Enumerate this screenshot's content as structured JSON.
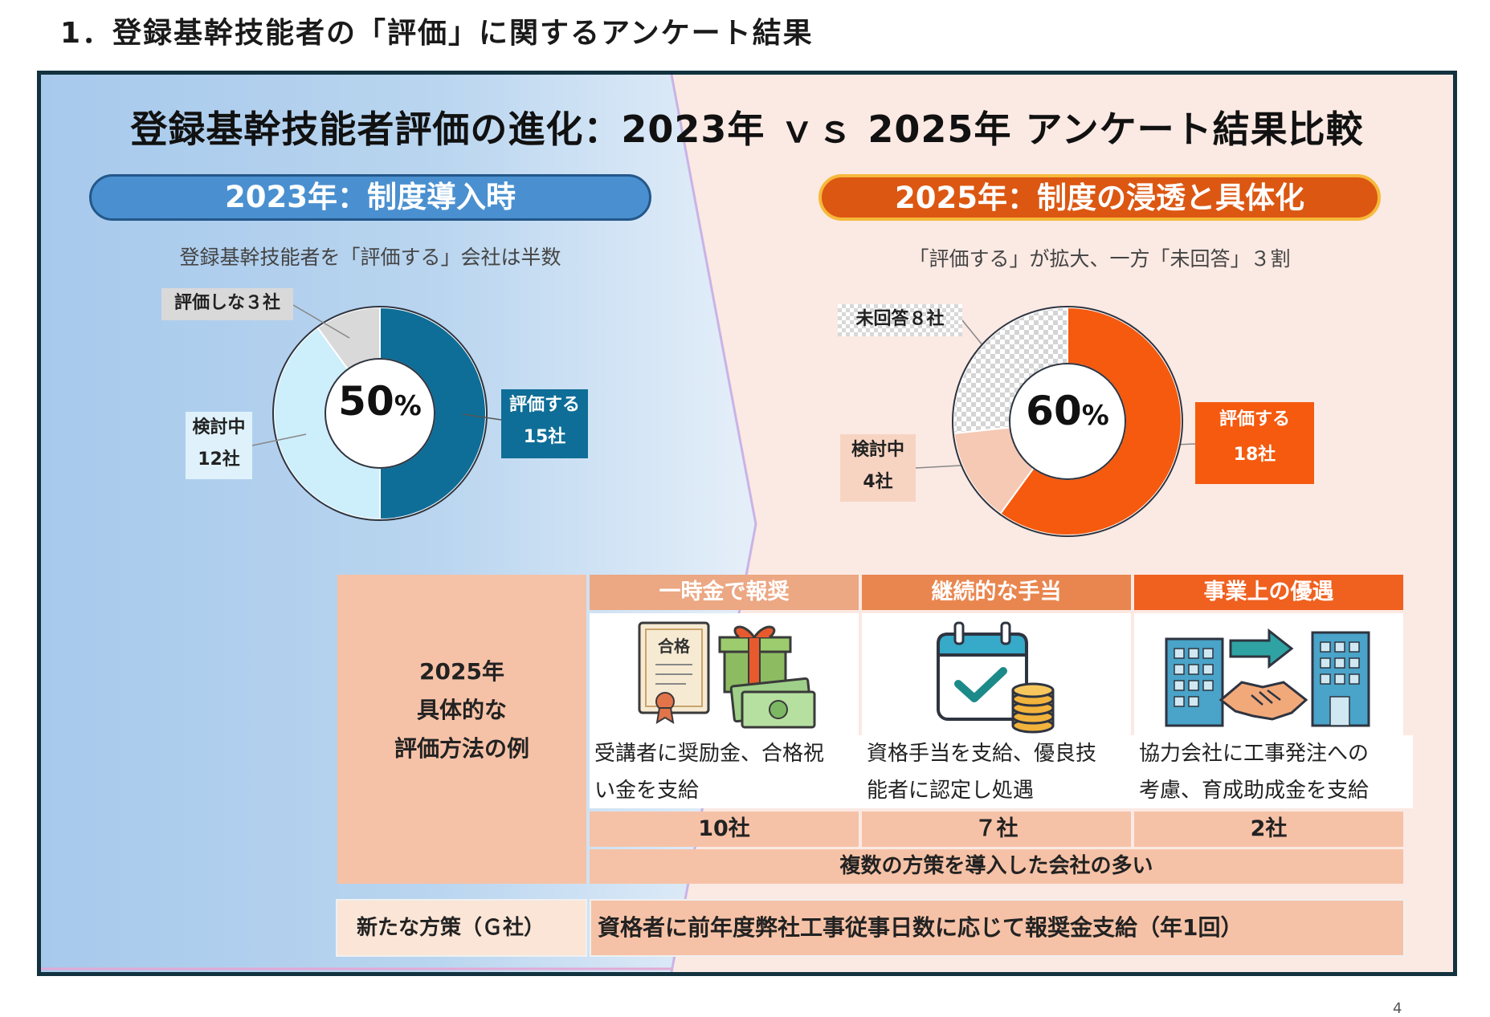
{
  "page": {
    "heading": "1．登録基幹技能者の「評価」に関するアンケート結果",
    "page_number": "4"
  },
  "main": {
    "title": "登録基幹技能者評価の進化：2023年 ｖｓ 2025年 アンケート結果比較"
  },
  "panel_2023": {
    "pill": "2023年：制度導入時",
    "subtitle": "登録基幹技能者を「評価する」会社は半数",
    "center_value": "50",
    "center_unit": "%",
    "labels": {
      "not_eval": "評価しな３社",
      "considering_1": "検討中",
      "considering_2": "12社",
      "eval_1": "評価する",
      "eval_2": "15社"
    }
  },
  "panel_2025": {
    "pill": "2025年：制度の浸透と具体化",
    "subtitle": "「評価する」が拡大、一方「未回答」３割",
    "center_value": "60",
    "center_unit": "%",
    "labels": {
      "no_answer": "未回答８社",
      "considering_1": "検討中",
      "considering_2": "4社",
      "eval_1": "評価する",
      "eval_2": "18社"
    }
  },
  "chart_data": [
    {
      "type": "pie",
      "categories": [
        "評価する",
        "検討中",
        "評価しない"
      ],
      "values": [
        15,
        12,
        3
      ],
      "center_label": "50%",
      "colors": [
        "#0e6e98",
        "#cdeefb",
        "#d9d9d9"
      ]
    },
    {
      "type": "pie",
      "categories": [
        "評価する",
        "検討中",
        "未回答"
      ],
      "values": [
        18,
        4,
        8
      ],
      "center_label": "60%",
      "colors": [
        "#f55a0f",
        "#f6c9b4",
        "#dddddd"
      ]
    }
  ],
  "methods": {
    "left_lines": [
      "2025年",
      "具体的な",
      "評価方法の例"
    ],
    "columns": [
      {
        "header": "一時金で報奨",
        "icon": "certificate-gift-money-icon",
        "desc_1": "受講者に奨励金、合格祝",
        "desc_2": "い金を支給",
        "count": "10社",
        "cert_text": "合格"
      },
      {
        "header": "継続的な手当",
        "icon": "calendar-coins-icon",
        "desc_1": "資格手当を支給、優良技",
        "desc_2": "能者に認定し処遇",
        "count": "７社"
      },
      {
        "header": "事業上の優遇",
        "icon": "buildings-handshake-icon",
        "desc_1": "協力会社に工事発注への",
        "desc_2": "考慮、育成助成金を支給",
        "count": "2社"
      }
    ],
    "summary": "複数の方策を導入した会社の多い"
  },
  "new_measure": {
    "label": "新たな方策（Ｇ社）",
    "text": "資格者に前年度弊社工事従事日数に応じて報奨金支給（年1回）"
  }
}
